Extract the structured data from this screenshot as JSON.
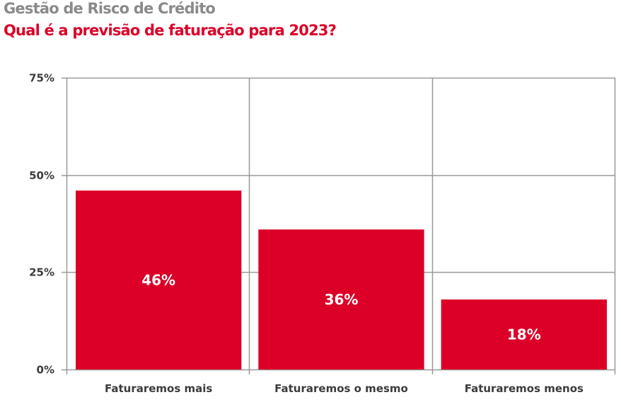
{
  "header": {
    "title": "Gestão de Risco de Crédito",
    "subtitle": "Qual é a previsão de faturação para 2023?"
  },
  "colors": {
    "bar": "#dc0028",
    "grid": "#999999",
    "title": "#8a8a8a",
    "subtitle": "#dc0028",
    "text": "#3c3c3c"
  },
  "chart_data": {
    "type": "bar",
    "title": "Qual é a previsão de faturação para 2023?",
    "xlabel": "",
    "ylabel": "",
    "categories": [
      "Faturaremos mais",
      "Faturaremos o mesmo",
      "Faturaremos menos"
    ],
    "values": [
      46,
      36,
      18
    ],
    "value_labels": [
      "46%",
      "36%",
      "18%"
    ],
    "yticks": [
      0,
      25,
      50,
      75
    ],
    "ytick_labels": [
      "0%",
      "25%",
      "50%",
      "75%"
    ],
    "ylim": [
      0,
      75
    ],
    "grid": true,
    "legend": "none"
  }
}
